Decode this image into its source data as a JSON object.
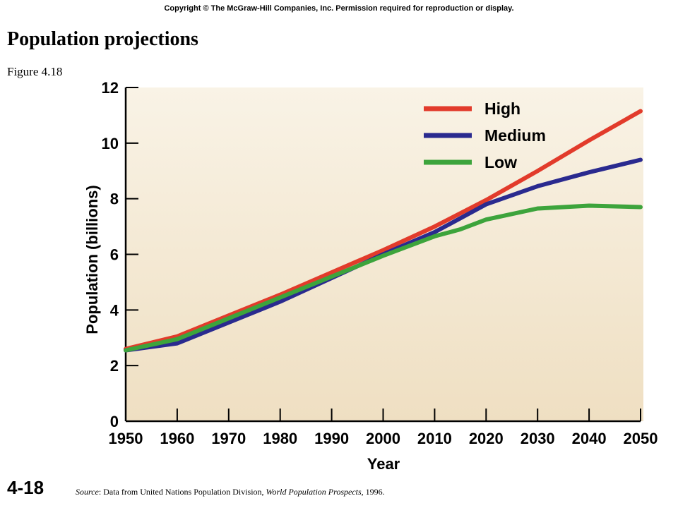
{
  "header": {
    "copyright": "Copyright © The McGraw-Hill Companies, Inc. Permission required for reproduction or display.",
    "title": "Population projections",
    "figure_label": "Figure 4.18"
  },
  "footer": {
    "slide_number": "4-18",
    "source_label": "Source",
    "source_text_1": ": Data from United Nations Population Division, ",
    "source_publication": "World Population Prospects",
    "source_text_2": ", 1996."
  },
  "colors": {
    "plot_background_top": "#f9f3e6",
    "plot_background_bottom": "#efdfc2",
    "high": "#e23b2b",
    "medium": "#2a2a8f",
    "low": "#3da43c"
  },
  "chart_data": {
    "type": "line",
    "title": "",
    "xlabel": "Year",
    "ylabel": "Population (billions)",
    "xlim": [
      1950,
      2050
    ],
    "ylim": [
      0,
      12
    ],
    "x_ticks": [
      1950,
      1960,
      1970,
      1980,
      1990,
      2000,
      2010,
      2020,
      2030,
      2040,
      2050
    ],
    "y_ticks": [
      0,
      2,
      4,
      6,
      8,
      10,
      12
    ],
    "grid": false,
    "legend_position": "top-right",
    "series": [
      {
        "name": "High",
        "color": "#e23b2b",
        "x": [
          1950,
          1960,
          1970,
          1980,
          1990,
          2000,
          2010,
          2020,
          2030,
          2040,
          2050
        ],
        "y": [
          2.6,
          3.05,
          3.8,
          4.55,
          5.35,
          6.15,
          7.0,
          7.95,
          9.0,
          10.1,
          11.15
        ]
      },
      {
        "name": "Medium",
        "color": "#2a2a8f",
        "x": [
          1950,
          1960,
          1970,
          1980,
          1990,
          2000,
          2010,
          2020,
          2030,
          2040,
          2050
        ],
        "y": [
          2.55,
          2.8,
          3.55,
          4.3,
          5.15,
          6.0,
          6.8,
          7.8,
          8.45,
          8.95,
          9.4
        ]
      },
      {
        "name": "Low",
        "color": "#3da43c",
        "x": [
          1950,
          1960,
          1970,
          1980,
          1990,
          2000,
          2010,
          2015,
          2020,
          2030,
          2040,
          2050
        ],
        "y": [
          2.55,
          2.95,
          3.7,
          4.45,
          5.2,
          5.95,
          6.65,
          6.9,
          7.25,
          7.65,
          7.75,
          7.7
        ]
      }
    ]
  }
}
